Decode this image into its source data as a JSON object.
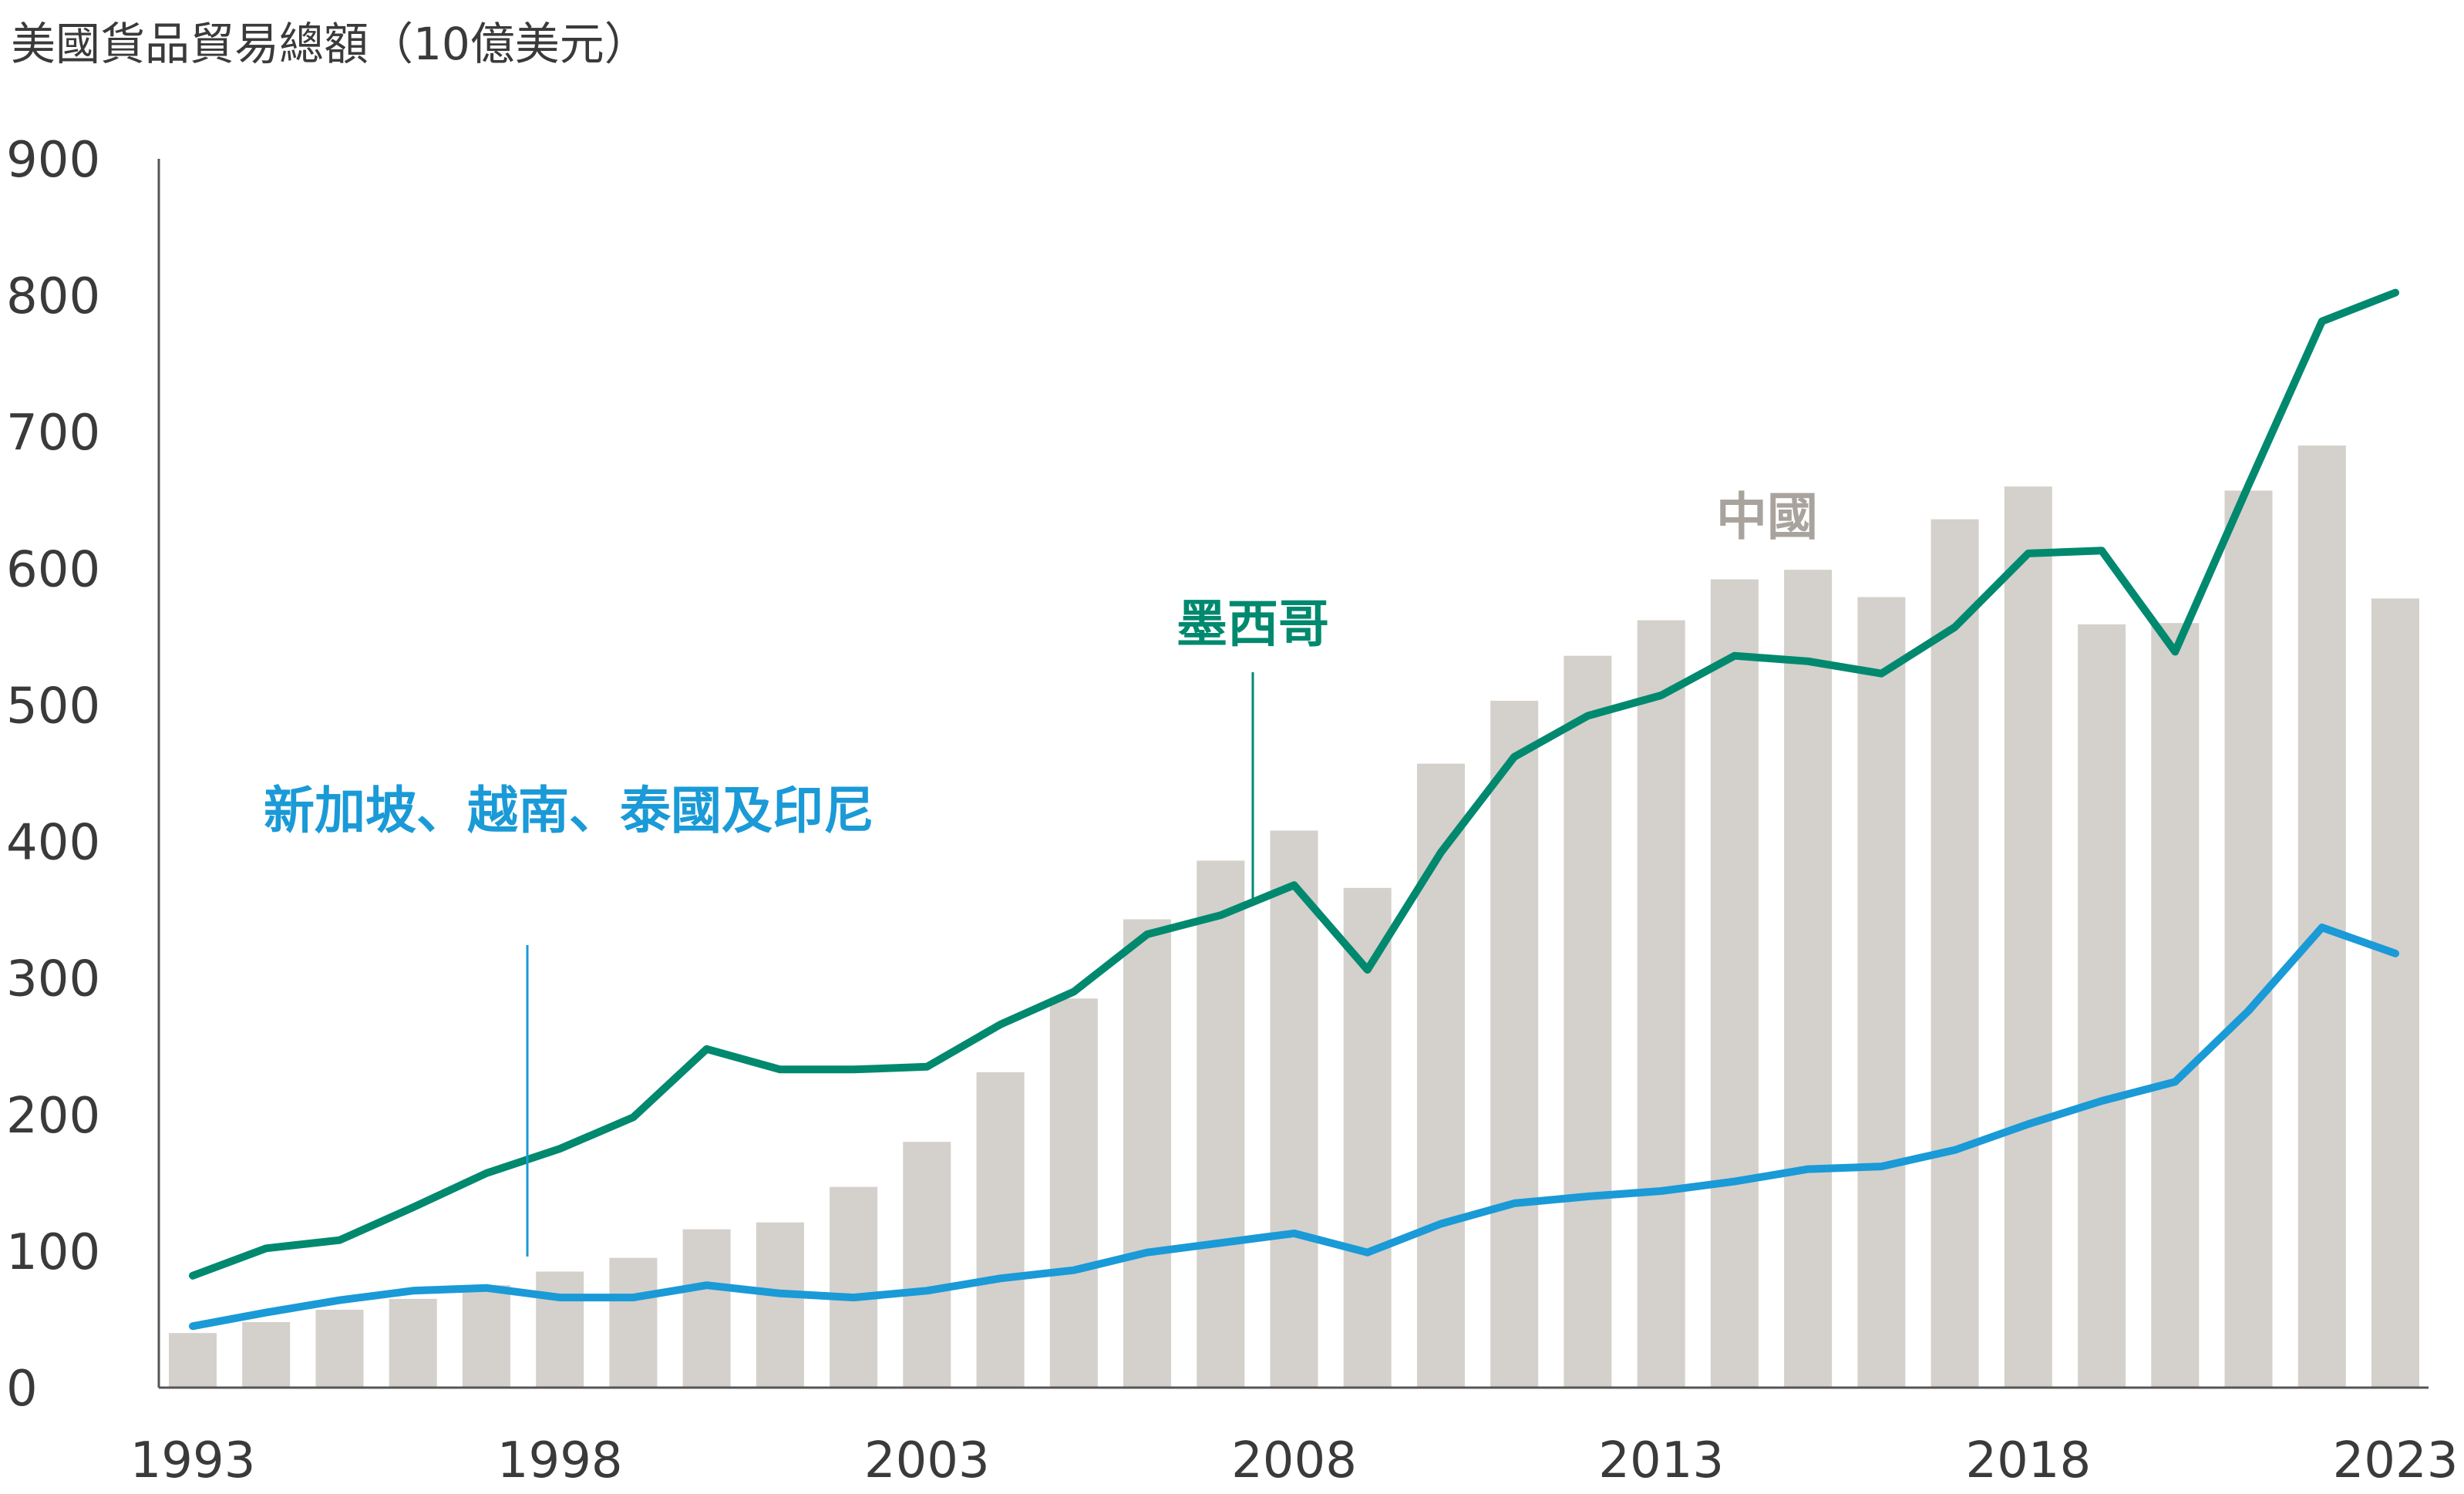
{
  "chart_data": {
    "type": "bar+line",
    "title": "美國貨品貿易總額（10億美元）",
    "x": [
      1993,
      1994,
      1995,
      1996,
      1997,
      1998,
      1999,
      2000,
      2001,
      2002,
      2003,
      2004,
      2005,
      2006,
      2007,
      2008,
      2009,
      2010,
      2011,
      2012,
      2013,
      2014,
      2015,
      2016,
      2017,
      2018,
      2019,
      2020,
      2021,
      2022,
      2023
    ],
    "x_tick_labels": [
      "1993",
      "1998",
      "2003",
      "2008",
      "2013",
      "2018",
      "2023"
    ],
    "x_tick_values": [
      1993,
      1998,
      2003,
      2008,
      2013,
      2018,
      2023
    ],
    "ylim": [
      0,
      900
    ],
    "y_ticks": [
      0,
      100,
      200,
      300,
      400,
      500,
      600,
      700,
      800,
      900
    ],
    "series": [
      {
        "name": "中國",
        "type": "bar",
        "color": "#d4d0cb",
        "values": [
          40,
          48,
          57,
          65,
          75,
          85,
          95,
          116,
          121,
          147,
          180,
          231,
          285,
          343,
          386,
          408,
          366,
          457,
          503,
          536,
          562,
          592,
          599,
          579,
          636,
          660,
          559,
          560,
          657,
          690,
          578
        ]
      },
      {
        "name": "墨西哥",
        "type": "line",
        "color": "#00896e",
        "values": [
          82,
          102,
          108,
          132,
          157,
          175,
          198,
          248,
          233,
          233,
          235,
          266,
          290,
          332,
          346,
          368,
          306,
          392,
          462,
          492,
          507,
          536,
          532,
          523,
          557,
          611,
          613,
          539,
          661,
          781,
          802
        ]
      },
      {
        "name": "新加坡、越南、泰國及印尼",
        "type": "line",
        "color": "#1a9ad7",
        "values": [
          45,
          55,
          64,
          71,
          73,
          66,
          66,
          75,
          69,
          66,
          71,
          80,
          86,
          99,
          106,
          113,
          99,
          120,
          135,
          140,
          144,
          151,
          160,
          162,
          174,
          193,
          210,
          224,
          276,
          337,
          318
        ]
      }
    ]
  }
}
